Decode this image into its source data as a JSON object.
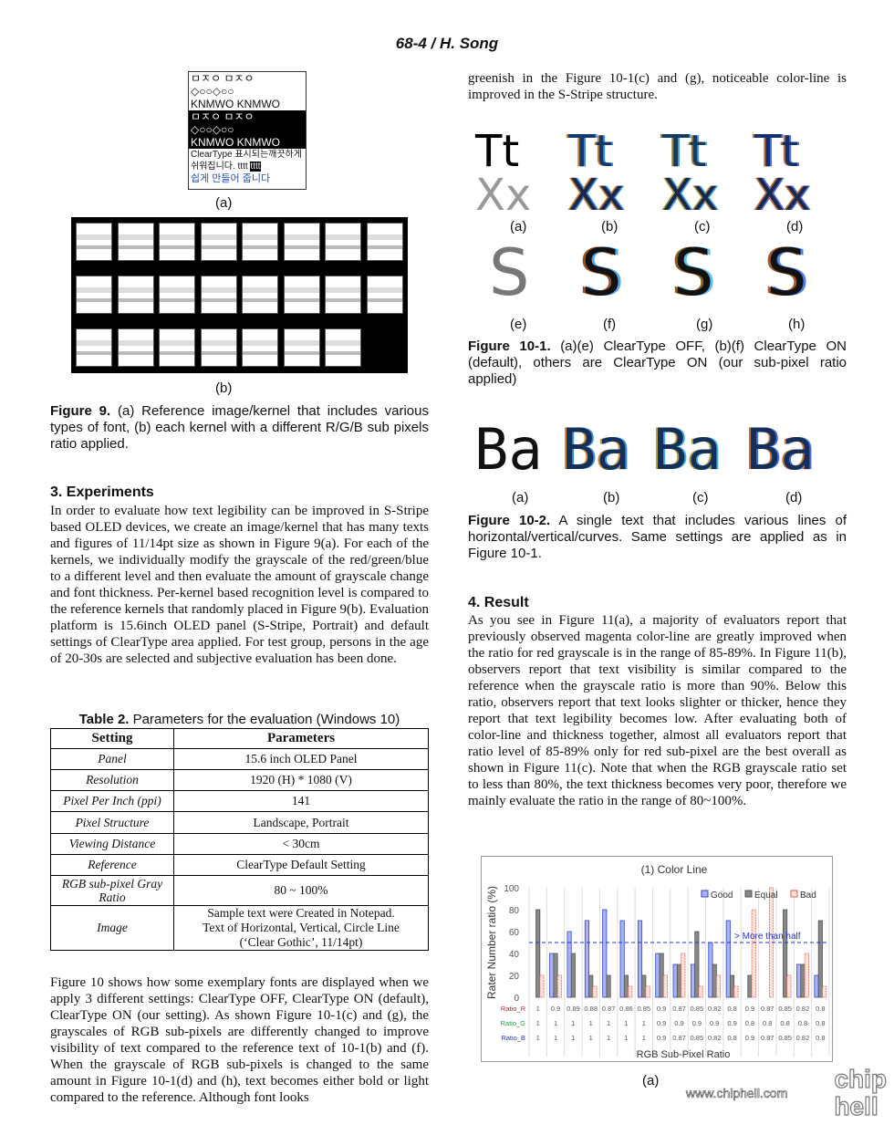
{
  "header": "68-4 / H. Song",
  "fig9": {
    "ref_lines": [
      "ㅁㅈㅇ  ㅁㅈㅇ",
      "◇○○◇○○",
      "KNMWO KNMWO",
      "ㅁㅈㅇ  ㅁㅈㅇ",
      "◇○○◇○○",
      "KNMWO KNMWO",
      "ClearType 표시되는깨끗하게",
      "쉬워집니다. tttt",
      "tttt",
      "쉽게 만들어 줍니다"
    ],
    "label_a": "(a)",
    "label_b": "(b)",
    "caption_bold": "Figure 9.",
    "caption": " (a) Reference image/kernel that includes various types of font, (b) each kernel with a different R/G/B sub pixels ratio applied."
  },
  "section3": {
    "title": "3.   Experiments",
    "body": "In order to evaluate how text legibility can be improved in S-Stripe based OLED devices, we create an image/kernel that has many texts and figures of 11/14pt size as shown in Figure 9(a). For each of the kernels, we individually modify the grayscale of the red/green/blue to a different level and then evaluate the amount of grayscale change and font thickness. Per-kernel based recognition level is compared to the reference kernels that randomly placed in Figure 9(b). Evaluation platform is 15.6inch OLED panel (S-Stripe, Portrait) and default settings of ClearType area applied. For test group, persons in the age of 20-30s are selected and subjective evaluation has been done."
  },
  "table2": {
    "caption_bold": "Table 2.",
    "caption": " Parameters for the evaluation (Windows 10)",
    "headers": [
      "Setting",
      "Parameters"
    ],
    "rows": [
      [
        "Panel",
        "15.6 inch  OLED Panel"
      ],
      [
        "Resolution",
        "1920 (H) * 1080 (V)"
      ],
      [
        "Pixel Per Inch (ppi)",
        "141"
      ],
      [
        "Pixel Structure",
        "Landscape, Portrait"
      ],
      [
        "Viewing Distance",
        "< 30cm"
      ],
      [
        "Reference",
        "ClearType Default Setting"
      ],
      [
        "RGB sub-pixel Gray Ratio",
        "80 ~ 100%"
      ],
      [
        "Image",
        "Sample text were Created in Notepad. Text of Horizontal, Vertical, Circle Line (‘Clear Gothic’, 11/14pt)"
      ]
    ]
  },
  "para_fig10": "Figure 10 shows how some exemplary fonts are displayed when we apply 3 different settings: ClearType OFF, ClearType ON (default), ClearType ON (our setting).  As shown Figure 10-1(c) and (g), the grayscales of RGB sub-pixels are differently changed to improve visibility of text compared to the reference text of 10-1(b) and (f). When the grayscale of RGB sub-pixels is changed to the same amount in Figure 10-1(d) and (h), text becomes either bold or light compared to the reference. Although font looks",
  "right_top": "greenish in the Figure 10-1(c) and (g), noticeable color-line is improved in the S-Stripe structure.",
  "fig10_1": {
    "tt": "Tt",
    "xx": "Xx",
    "s": "S",
    "labels_top": [
      "(a)",
      "(b)",
      "(c)",
      "(d)"
    ],
    "labels_bottom": [
      "(e)",
      "(f)",
      "(g)",
      "(h)"
    ],
    "caption_bold": "Figure 10-1.",
    "caption": " (a)(e) ClearType OFF, (b)(f) ClearType ON (default), others are ClearType ON (our sub-pixel ratio applied)"
  },
  "fig10_2": {
    "ba": "Ba",
    "labels": [
      "(a)",
      "(b)",
      "(c)",
      "(d)"
    ],
    "caption_bold": "Figure 10-2.",
    "caption": " A single text that includes various lines of horizontal/vertical/curves. Same settings are applied as in Figure 10-1."
  },
  "section4": {
    "title": "4.   Result",
    "body": "As you see in Figure 11(a), a majority of evaluators report that previously observed magenta color-line are greatly improved when the ratio for red grayscale is in the range of 85-89%. In Figure 11(b), observers report that text visibility is similar compared to the reference when the grayscale ratio is more than 90%. Below this ratio, observers report that text looks slighter or thicker, hence they report that text legibility becomes low. After evaluating both of color-line and thickness together, almost all evaluators report that ratio level of 85-89% only for red sub-pixel are the best overall as shown in Figure 11(c). Note that when the RGB grayscale ratio set to less than 80%, the text thickness becomes very poor, therefore we mainly evaluate the ratio in the range of 80~100%."
  },
  "fig11_label": "(a)",
  "chart_data": {
    "type": "bar",
    "title": "(1) Color Line",
    "ylabel": "Rater  Number ratio (%)",
    "xlabel": "RGB Sub-Pixel Ratio",
    "ylim": [
      0,
      100
    ],
    "yticks": [
      0,
      20,
      40,
      60,
      80,
      100
    ],
    "grid": "vertical",
    "legend": "top-right",
    "annotation": "> More than half",
    "threshold": 50,
    "row_labels": [
      "Ratio_R",
      "Ratio_G",
      "Ratio_B"
    ],
    "ratio_R": [
      "1",
      "0.9",
      "0.89",
      "0.88",
      "0.87",
      "0.86",
      "0.85",
      "0.9",
      "0.87",
      "0.85",
      "0.82",
      "0.8",
      "0.9",
      "0.87",
      "0.85",
      "0.82",
      "0.8"
    ],
    "ratio_G": [
      "1",
      "1",
      "1",
      "1",
      "1",
      "1",
      "1",
      "0.9",
      "0.9",
      "0.9",
      "0.9",
      "0.9",
      "0.8",
      "0.8",
      "0.8",
      "0.8",
      "0.8"
    ],
    "ratio_B": [
      "1",
      "1",
      "1",
      "1",
      "1",
      "1",
      "1",
      "0.9",
      "0.87",
      "0.85",
      "0.82",
      "0.8",
      "0.9",
      "0.87",
      "0.85",
      "0.82",
      "0.8"
    ],
    "series": [
      {
        "name": "Good",
        "color": "#7f8ff0",
        "values": [
          0,
          40,
          60,
          70,
          80,
          70,
          70,
          40,
          30,
          30,
          50,
          70,
          0,
          0,
          0,
          30,
          20
        ]
      },
      {
        "name": "Equal",
        "color": "#777777",
        "values": [
          80,
          40,
          40,
          20,
          20,
          20,
          20,
          40,
          30,
          60,
          30,
          20,
          20,
          0,
          80,
          30,
          70
        ]
      },
      {
        "name": "Bad",
        "color": "#f4a9a0",
        "values": [
          20,
          20,
          0,
          10,
          0,
          10,
          10,
          20,
          40,
          10,
          20,
          10,
          80,
          100,
          20,
          40,
          10
        ]
      }
    ]
  },
  "watermark": {
    "logo": "chip hell",
    "url": "www.chiphell.com"
  }
}
